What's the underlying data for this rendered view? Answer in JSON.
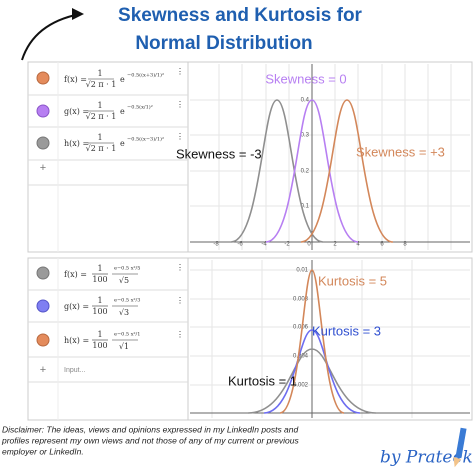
{
  "header": {
    "title_lines": [
      "Skewness and Kurtosis for",
      "Normal Distribution"
    ]
  },
  "skewness_panel": {
    "functions": [
      {
        "name": "f(x) =",
        "numerator": "1",
        "denominator": "√2 π · 1",
        "base": "e",
        "exponent": "−0.5((x+3)/1)²"
      },
      {
        "name": "g(x) =",
        "numerator": "1",
        "denominator": "√2 π · 1",
        "base": "e",
        "exponent": "−0.5(x/1)²"
      },
      {
        "name": "h(x) =",
        "numerator": "1",
        "denominator": "√2 π · 1",
        "base": "e",
        "exponent": "−0.5((x−3)/1)²"
      }
    ],
    "add": "+",
    "annotations": [
      "Skewness = 0",
      "Skewness = -3",
      "Skewness = +3"
    ],
    "xticks": [
      "-8",
      "-6",
      "-4",
      "-2",
      "0",
      "2",
      "4",
      "6",
      "8"
    ],
    "yticks": [
      "0.4",
      "0.3",
      "0.2",
      "0.1"
    ]
  },
  "kurtosis_panel": {
    "functions": [
      {
        "name": "f(x) =",
        "numerator": "1",
        "denominator": "100",
        "exponent": "e−0.5 x²/5",
        "root": "√5"
      },
      {
        "name": "g(x) =",
        "numerator": "1",
        "denominator": "100",
        "exponent": "e−0.5 x²/3",
        "root": "√3"
      },
      {
        "name": "h(x) =",
        "numerator": "1",
        "denominator": "100",
        "exponent": "e−0.5 x²/1",
        "root": "√1"
      }
    ],
    "add": "+",
    "input_placeholder": "Input...",
    "annotations": [
      "Kurtosis = 5",
      "Kurtosis = 3",
      "Kurtosis = 1"
    ],
    "yticks": [
      "0.01",
      "0.008",
      "0.006",
      "0.004",
      "0.002"
    ]
  },
  "footer": {
    "disclaimer_lines": [
      "Disclaimer: The ideas, views and opinions expressed in my LinkedIn posts and",
      "profiles represent my own views and not those of any of my current or previous",
      "employer or LinkedIn.",
      ""
    ],
    "signature": "by Prateek"
  }
}
